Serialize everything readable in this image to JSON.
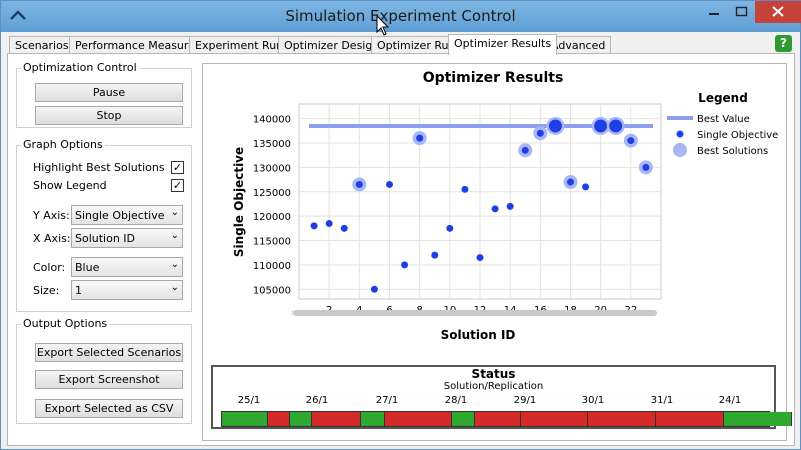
{
  "window": {
    "title": "Simulation Experiment Control"
  },
  "tabs": [
    "Scenarios",
    "Performance Measures",
    "Experiment Run",
    "Optimizer Design",
    "Optimizer Run",
    "Optimizer Results",
    "Advanced"
  ],
  "active_tab": "Optimizer Results",
  "help_label": "?",
  "optimization_control": {
    "title": "Optimization Control",
    "pause_label": "Pause",
    "stop_label": "Stop"
  },
  "graph_options": {
    "title": "Graph Options",
    "highlight_best_label": "Highlight Best Solutions",
    "highlight_best_checked": "✓",
    "show_legend_label": "Show Legend",
    "show_legend_checked": "✓",
    "y_axis_label": "Y Axis:",
    "y_axis_value": "Single Objective",
    "x_axis_label": "X Axis:",
    "x_axis_value": "Solution ID",
    "color_label": "Color:",
    "color_value": "Blue",
    "size_label": "Size:",
    "size_value": "1"
  },
  "output_options": {
    "title": "Output Options",
    "export_scenarios_label": "Export Selected Scenarios",
    "export_screenshot_label": "Export Screenshot",
    "export_csv_label": "Export Selected as CSV"
  },
  "colors": {
    "accent": "#5f9ed4",
    "point": "#1f3fe6",
    "best_line": "#8c9ef0",
    "best_halo": "#a9b6f5",
    "green": "#2ea82e",
    "red": "#d42a2a"
  },
  "chart_data": {
    "type": "scatter",
    "title": "Optimizer Results",
    "xlabel": "Solution ID",
    "ylabel": "Single Objective",
    "xlim": [
      0,
      24
    ],
    "ylim": [
      103000,
      143000
    ],
    "xticks": [
      2,
      4,
      6,
      8,
      10,
      12,
      14,
      16,
      18,
      20,
      22
    ],
    "yticks": [
      105000,
      110000,
      115000,
      120000,
      125000,
      130000,
      135000,
      140000
    ],
    "best_value": 138500,
    "legend": {
      "title": "Legend",
      "best_value_label": "Best Value",
      "single_objective_label": "Single Objective",
      "best_solutions_label": "Best Solutions"
    },
    "x": [
      1,
      2,
      3,
      4,
      5,
      6,
      7,
      8,
      9,
      10,
      11,
      12,
      13,
      14,
      15,
      16,
      17,
      18,
      19,
      20,
      21,
      22,
      23
    ],
    "y": [
      118000,
      118500,
      117500,
      126500,
      105000,
      126500,
      110000,
      136000,
      112000,
      117500,
      125500,
      111500,
      121500,
      122000,
      133500,
      137000,
      138500,
      127000,
      126000,
      138500,
      138500,
      135500,
      130000
    ],
    "best_flags": [
      false,
      false,
      false,
      true,
      false,
      false,
      false,
      true,
      false,
      false,
      false,
      false,
      false,
      false,
      true,
      true,
      true,
      true,
      false,
      true,
      true,
      true,
      true
    ],
    "large_flags": [
      false,
      false,
      false,
      false,
      false,
      false,
      false,
      false,
      false,
      false,
      false,
      false,
      false,
      false,
      false,
      false,
      true,
      false,
      false,
      true,
      true,
      false,
      false
    ]
  },
  "status": {
    "title": "Status",
    "subtitle": "Solution/Replication",
    "labels": [
      "25/1",
      "26/1",
      "27/1",
      "28/1",
      "29/1",
      "30/1",
      "31/1",
      "24/1"
    ],
    "segments": [
      "green",
      "red",
      "green",
      "red",
      "green",
      "red",
      "green",
      "red",
      "red",
      "red",
      "red",
      "green"
    ]
  }
}
